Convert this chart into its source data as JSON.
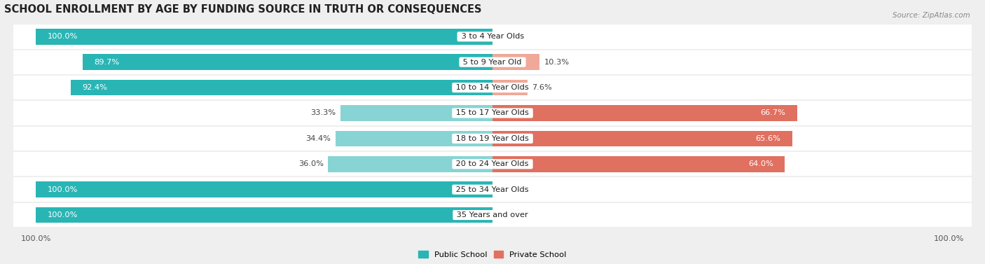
{
  "title": "SCHOOL ENROLLMENT BY AGE BY FUNDING SOURCE IN TRUTH OR CONSEQUENCES",
  "source": "Source: ZipAtlas.com",
  "categories": [
    "3 to 4 Year Olds",
    "5 to 9 Year Old",
    "10 to 14 Year Olds",
    "15 to 17 Year Olds",
    "18 to 19 Year Olds",
    "20 to 24 Year Olds",
    "25 to 34 Year Olds",
    "35 Years and over"
  ],
  "public_values": [
    100.0,
    89.7,
    92.4,
    33.3,
    34.4,
    36.0,
    100.0,
    100.0
  ],
  "private_values": [
    0.0,
    10.3,
    7.6,
    66.7,
    65.6,
    64.0,
    0.0,
    0.0
  ],
  "public_color_dark": "#2ab5b5",
  "public_color_light": "#88d4d4",
  "private_color_dark": "#e07060",
  "private_color_light": "#f0a898",
  "bg_color": "#efefef",
  "row_bg_even": "#f8f8f8",
  "row_bg_odd": "#f0f0f0",
  "bar_height": 0.62,
  "legend_public": "Public School",
  "legend_private": "Private School",
  "title_fontsize": 10.5,
  "label_fontsize": 8.2,
  "value_fontsize": 8.2,
  "tick_fontsize": 8.2,
  "source_fontsize": 7.5
}
